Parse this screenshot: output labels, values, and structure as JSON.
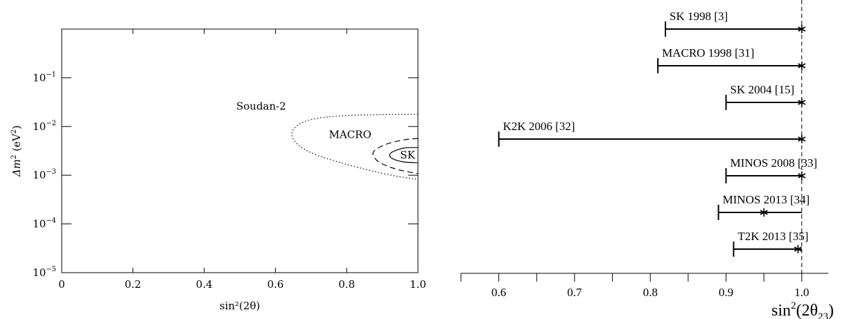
{
  "chart_data": [
    {
      "type": "line",
      "xlabel": "sin²(2θ)",
      "ylabel_main": "Δm",
      "ylabel_sup": "2",
      "ylabel_unit_open": " (eV",
      "ylabel_unit_sup": "2",
      "ylabel_unit_close": ")",
      "x_ticks": [
        0,
        0.2,
        0.4,
        0.6,
        0.8,
        1.0
      ],
      "x_tick_labels": [
        "0",
        "0.2",
        "0.4",
        "0.6",
        "0.8",
        "1.0"
      ],
      "xlim": [
        0,
        1.0
      ],
      "y_scale": "log",
      "ylim": [
        1e-05,
        1
      ],
      "y_ticks": [
        1e-05,
        0.0001,
        0.001,
        0.01,
        0.1
      ],
      "y_tick_base": [
        "10",
        "10",
        "10",
        "10",
        "10"
      ],
      "y_tick_exp": [
        "−5",
        "−4",
        "−3",
        "−2",
        "−1"
      ],
      "grid": false,
      "series": [
        {
          "name": "Soudan-2",
          "style": "dotted",
          "points": [
            [
              1.0,
              0.0178
            ],
            [
              0.9,
              0.0176
            ],
            [
              0.8,
              0.0168
            ],
            [
              0.72,
              0.0148
            ],
            [
              0.67,
              0.0115
            ],
            [
              0.646,
              0.0073
            ],
            [
              0.662,
              0.0043
            ],
            [
              0.71,
              0.0027
            ],
            [
              0.79,
              0.00175
            ],
            [
              0.88,
              0.00118
            ],
            [
              0.95,
              0.00093
            ],
            [
              1.0,
              0.00082
            ]
          ]
        },
        {
          "name": "MACRO",
          "style": "dashed",
          "points": [
            [
              1.0,
              0.0057
            ],
            [
              0.96,
              0.0053
            ],
            [
              0.91,
              0.0043
            ],
            [
              0.875,
              0.003
            ],
            [
              0.885,
              0.002
            ],
            [
              0.92,
              0.00148
            ],
            [
              0.96,
              0.00122
            ],
            [
              1.0,
              0.00108
            ]
          ]
        },
        {
          "name": "SK",
          "style": "solid",
          "points": [
            [
              1.0,
              0.0037
            ],
            [
              0.96,
              0.0036
            ],
            [
              0.925,
              0.0029
            ],
            [
              0.924,
              0.0023
            ],
            [
              0.955,
              0.0019
            ],
            [
              1.0,
              0.0018
            ]
          ]
        }
      ],
      "annotations": [
        {
          "text": "Soudan-2",
          "x": 0.49,
          "y": 0.022
        },
        {
          "text": "MACRO",
          "x": 0.75,
          "y": 0.0058
        },
        {
          "text": "SK",
          "x": 0.95,
          "y": 0.0022
        }
      ]
    },
    {
      "type": "scatter",
      "xlabel_main": "sin",
      "xlabel_sup": "2",
      "xlabel_open": "(2θ",
      "xlabel_sub": "23",
      "xlabel_close": ")",
      "xlim": [
        0.55,
        1.035
      ],
      "x_ticks": [
        0.6,
        0.7,
        0.8,
        0.9,
        1.0
      ],
      "x_tick_labels": [
        "0.6",
        "0.7",
        "0.8",
        "0.9",
        "1.0"
      ],
      "x_minor_ticks": [
        0.55,
        0.65,
        0.75,
        0.85,
        0.95
      ],
      "reference_line_x": 1.0,
      "grid": false,
      "measurements": [
        {
          "label": "SK 1998 [3]",
          "lower": 0.82,
          "upper": 1.0,
          "best": 1.0
        },
        {
          "label": "MACRO 1998 [31]",
          "lower": 0.81,
          "upper": 1.0,
          "best": 1.0
        },
        {
          "label": "SK 2004 [15]",
          "lower": 0.9,
          "upper": 1.0,
          "best": 1.0
        },
        {
          "label": "K2K 2006 [32]",
          "lower": 0.6,
          "upper": 1.0,
          "best": 1.0
        },
        {
          "label": "MINOS 2008 [33]",
          "lower": 0.9,
          "upper": 1.0,
          "best": 1.0
        },
        {
          "label": "MINOS 2013 [34]",
          "lower": 0.89,
          "upper": 1.0,
          "best": 0.95
        },
        {
          "label": "T2K 2013 [35]",
          "lower": 0.91,
          "upper": 1.0,
          "best": 0.995
        }
      ]
    }
  ]
}
